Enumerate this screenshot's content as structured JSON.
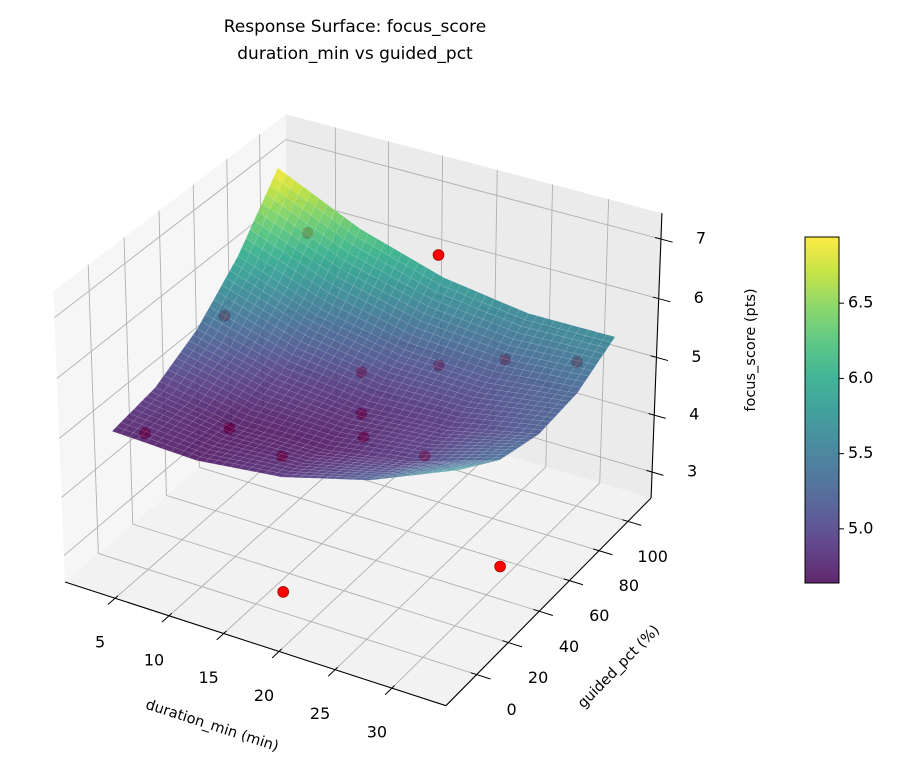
{
  "chart_data": {
    "type": "surface3d",
    "title": [
      "Response Surface: focus_score",
      "duration_min vs guided_pct"
    ],
    "xlabel": "duration_min (min)",
    "ylabel": "guided_pct (%)",
    "zlabel": "focus_score (pts)",
    "xlim": [
      0.3,
      34.7
    ],
    "ylim": [
      -19,
      116.3
    ],
    "zlim": [
      2.54,
      7.43
    ],
    "xticks": [
      5,
      10,
      15,
      20,
      25,
      30
    ],
    "yticks": [
      0,
      20,
      40,
      60,
      80,
      100
    ],
    "zticks": [
      3,
      4,
      5,
      6,
      7
    ],
    "view": {
      "elev": 30,
      "azim": -60
    },
    "grid": true,
    "surface": {
      "colormap": "viridis",
      "alpha": 0.85,
      "x": [
        2,
        9.75,
        17.5,
        25.25,
        33
      ],
      "y": [
        0,
        25,
        50,
        75,
        100
      ],
      "z": [
        [
          4.75,
          4.69,
          4.85,
          5.24,
          5.85
        ],
        [
          4.89,
          4.67,
          4.69,
          4.92,
          5.39
        ],
        [
          5.3,
          4.94,
          4.8,
          4.89,
          5.2
        ],
        [
          5.98,
          5.47,
          5.18,
          5.12,
          5.28
        ],
        [
          6.94,
          6.28,
          5.84,
          5.63,
          5.64
        ]
      ]
    },
    "points": {
      "color": "#ff0000",
      "x": [
        17,
        17.5,
        30.5,
        6,
        3,
        15,
        20.5,
        24.7,
        30.4,
        17.2,
        18.7,
        3.9,
        9,
        14.6,
        24.5
      ],
      "y": [
        100,
        0,
        45,
        92,
        60,
        65,
        76,
        89,
        94.6,
        50,
        41,
        7,
        24,
        19,
        39
      ],
      "z": [
        6.2,
        2.9,
        2.93,
        6.2,
        5.35,
        4.9,
        5.05,
        5.07,
        5.2,
        4.67,
        4.58,
        4.65,
        4.6,
        4.56,
        4.63
      ]
    },
    "colorbar": {
      "range": [
        4.64,
        6.94
      ],
      "ticks": [
        5.0,
        5.5,
        6.0,
        6.5
      ],
      "tick_labels": [
        "5.0",
        "5.5",
        "6.0",
        "6.5"
      ],
      "placement": "right"
    }
  }
}
